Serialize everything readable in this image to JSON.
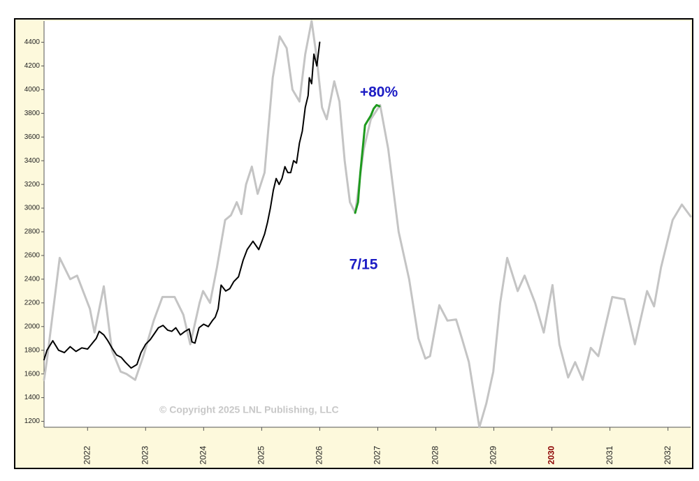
{
  "chart_data": {
    "type": "line",
    "watermark": "© Copyright 2025 LNL Publishing, LLC",
    "annotations": [
      "+80%",
      "7/15"
    ],
    "annotation_color": "#1c1cc4",
    "xlim": [
      2021.25,
      2032.39
    ],
    "xticks": [
      2022,
      2023,
      2024,
      2025,
      2026,
      2027,
      2028,
      2029,
      2030,
      2031,
      2032
    ],
    "xtick_label_colors": [
      "#222",
      "#222",
      "#222",
      "#222",
      "#222",
      "#222",
      "#222",
      "#222",
      "#8b0000",
      "#222",
      "#222"
    ],
    "ylim": [
      1150,
      4580
    ],
    "yticks": [
      1200,
      1400,
      1600,
      1800,
      2000,
      2200,
      2400,
      2600,
      2800,
      3000,
      3200,
      3400,
      3600,
      3800,
      4000,
      4200,
      4400
    ],
    "grid": false,
    "series": [
      {
        "color": "#c4c4c4",
        "width": 3,
        "x": [
          2021.25,
          2021.3,
          2021.52,
          2021.7,
          2021.82,
          2022.04,
          2022.12,
          2022.28,
          2022.42,
          2022.57,
          2022.67,
          2022.82,
          2022.96,
          2023.14,
          2023.29,
          2023.5,
          2023.65,
          2023.77,
          2023.93,
          2023.99,
          2024.11,
          2024.23,
          2024.37,
          2024.47,
          2024.57,
          2024.65,
          2024.73,
          2024.83,
          2024.93,
          2025.05,
          2025.19,
          2025.31,
          2025.43,
          2025.53,
          2025.65,
          2025.75,
          2025.86,
          2025.94,
          2026.04,
          2026.12,
          2026.25,
          2026.34,
          2026.43,
          2026.52,
          2026.61,
          2026.76,
          2026.88,
          2027.04,
          2027.18,
          2027.36,
          2027.54,
          2027.7,
          2027.82,
          2027.9,
          2028.06,
          2028.2,
          2028.35,
          2028.45,
          2028.57,
          2028.75,
          2028.87,
          2028.99,
          2029.11,
          2029.23,
          2029.41,
          2029.53,
          2029.71,
          2029.86,
          2030.01,
          2030.13,
          2030.28,
          2030.4,
          2030.53,
          2030.67,
          2030.8,
          2031.04,
          2031.25,
          2031.43,
          2031.64,
          2031.76,
          2031.88,
          2032.08,
          2032.24,
          2032.39
        ],
        "values": [
          1550,
          1720,
          2580,
          2400,
          2430,
          2150,
          1950,
          2340,
          1800,
          1620,
          1600,
          1550,
          1750,
          2050,
          2250,
          2250,
          2100,
          1850,
          2200,
          2300,
          2200,
          2500,
          2900,
          2940,
          3050,
          2950,
          3200,
          3350,
          3120,
          3300,
          4100,
          4450,
          4350,
          4000,
          3900,
          4300,
          4580,
          4300,
          3850,
          3750,
          4070,
          3900,
          3400,
          3050,
          2960,
          3500,
          3750,
          3870,
          3500,
          2800,
          2400,
          1900,
          1730,
          1750,
          2180,
          2050,
          2060,
          1900,
          1700,
          1150,
          1350,
          1620,
          2200,
          2580,
          2300,
          2430,
          2200,
          1950,
          2350,
          1850,
          1570,
          1700,
          1550,
          1820,
          1750,
          2250,
          2230,
          1850,
          2300,
          2170,
          2500,
          2900,
          3030,
          2930
        ]
      },
      {
        "color": "#000000",
        "width": 2,
        "x": [
          2021.25,
          2021.3,
          2021.4,
          2021.5,
          2021.6,
          2021.7,
          2021.8,
          2021.9,
          2022.0,
          2022.1,
          2022.15,
          2022.2,
          2022.28,
          2022.35,
          2022.42,
          2022.5,
          2022.58,
          2022.65,
          2022.75,
          2022.85,
          2022.92,
          2023.0,
          2023.08,
          2023.15,
          2023.22,
          2023.3,
          2023.38,
          2023.45,
          2023.52,
          2023.6,
          2023.68,
          2023.75,
          2023.8,
          2023.85,
          2023.92,
          2024.0,
          2024.08,
          2024.15,
          2024.2,
          2024.25,
          2024.3,
          2024.38,
          2024.45,
          2024.52,
          2024.6,
          2024.68,
          2024.75,
          2024.85,
          2024.95,
          2025.05,
          2025.1,
          2025.15,
          2025.2,
          2025.25,
          2025.3,
          2025.35,
          2025.4,
          2025.45,
          2025.5,
          2025.55,
          2025.6,
          2025.65,
          2025.7,
          2025.75,
          2025.8,
          2025.82,
          2025.86,
          2025.9,
          2025.95,
          2026.0
        ],
        "values": [
          1720,
          1800,
          1880,
          1800,
          1780,
          1830,
          1790,
          1820,
          1810,
          1870,
          1900,
          1960,
          1930,
          1880,
          1820,
          1760,
          1740,
          1700,
          1650,
          1680,
          1780,
          1850,
          1890,
          1940,
          1990,
          2010,
          1970,
          1960,
          1990,
          1930,
          1960,
          1980,
          1870,
          1860,
          1990,
          2020,
          2000,
          2050,
          2080,
          2150,
          2350,
          2300,
          2320,
          2380,
          2420,
          2560,
          2650,
          2720,
          2650,
          2780,
          2880,
          3000,
          3150,
          3250,
          3200,
          3250,
          3350,
          3300,
          3300,
          3400,
          3380,
          3550,
          3650,
          3850,
          3950,
          4100,
          4050,
          4300,
          4200,
          4400
        ]
      },
      {
        "color": "#1e9a1e",
        "width": 3,
        "x": [
          2026.61,
          2026.66,
          2026.7,
          2026.75,
          2026.78,
          2026.83,
          2026.88,
          2026.93,
          2026.98,
          2027.03
        ],
        "values": [
          2960,
          3050,
          3300,
          3550,
          3700,
          3740,
          3780,
          3840,
          3870,
          3860
        ]
      }
    ]
  }
}
